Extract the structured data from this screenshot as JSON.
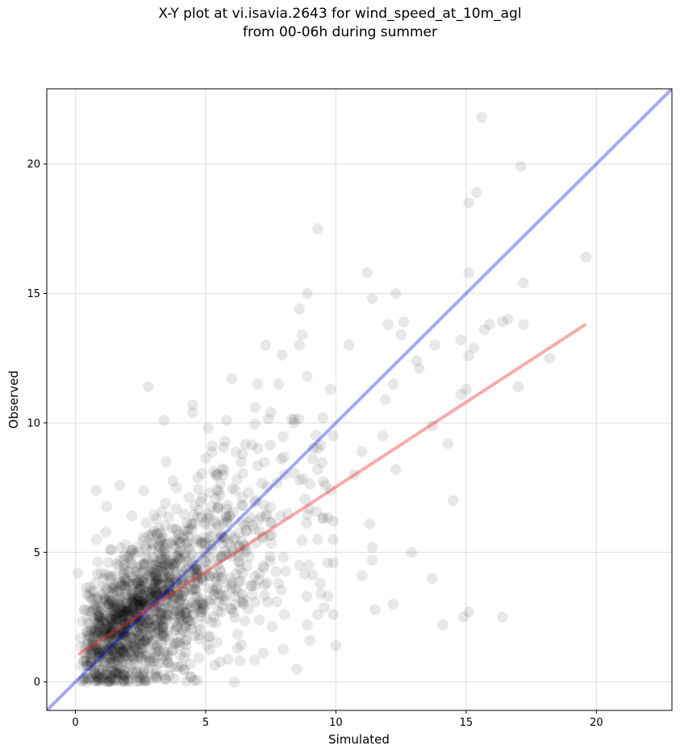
{
  "chart_data": {
    "type": "scatter",
    "title_line1": "X-Y plot at vi.isavia.2643 for wind_speed_at_10m_agl",
    "title_line2": "from 00-06h during summer",
    "xlabel": "Simulated",
    "ylabel": "Observed",
    "xlim": [
      -1.1,
      22.9
    ],
    "ylim": [
      -1.1,
      22.9
    ],
    "xticks": [
      0,
      5,
      10,
      15,
      20
    ],
    "yticks": [
      0,
      5,
      10,
      15,
      20
    ],
    "grid": true,
    "point_color": "#000000",
    "point_opacity": 0.09,
    "identity_line": {
      "color": "#0000ee",
      "x": [
        -1.1,
        22.9
      ],
      "y": [
        -1.1,
        22.9
      ]
    },
    "regression_line": {
      "color": "#ee2222",
      "x": [
        0.15,
        19.55
      ],
      "y": [
        1.08,
        13.78
      ]
    },
    "highlighted_points": [
      [
        15.6,
        21.8
      ],
      [
        17.1,
        19.9
      ],
      [
        15.4,
        18.9
      ],
      [
        15.1,
        18.5
      ],
      [
        9.3,
        17.5
      ],
      [
        19.6,
        16.4
      ],
      [
        11.2,
        15.8
      ],
      [
        15.1,
        15.8
      ],
      [
        17.2,
        15.4
      ],
      [
        8.9,
        15.0
      ],
      [
        12.3,
        15.0
      ],
      [
        11.4,
        14.8
      ],
      [
        8.6,
        14.4
      ],
      [
        16.6,
        14.0
      ],
      [
        16.4,
        13.9
      ],
      [
        12.6,
        13.9
      ],
      [
        15.9,
        13.8
      ],
      [
        17.2,
        13.8
      ],
      [
        12.0,
        13.8
      ],
      [
        15.7,
        13.6
      ],
      [
        12.5,
        13.4
      ],
      [
        8.7,
        13.4
      ],
      [
        14.8,
        13.2
      ],
      [
        7.3,
        13.0
      ],
      [
        10.5,
        13.0
      ],
      [
        8.6,
        13.0
      ],
      [
        13.8,
        13.0
      ],
      [
        15.3,
        12.9
      ],
      [
        15.1,
        12.6
      ],
      [
        13.1,
        12.4
      ],
      [
        18.2,
        12.5
      ],
      [
        13.2,
        12.1
      ],
      [
        8.9,
        11.8
      ],
      [
        6.0,
        11.7
      ],
      [
        7.0,
        11.5
      ],
      [
        7.8,
        11.5
      ],
      [
        12.2,
        11.5
      ],
      [
        17.0,
        11.4
      ],
      [
        2.8,
        11.4
      ],
      [
        15.0,
        11.3
      ],
      [
        9.8,
        11.3
      ],
      [
        14.8,
        11.1
      ],
      [
        11.9,
        10.9
      ],
      [
        4.5,
        10.7
      ],
      [
        6.9,
        10.6
      ],
      [
        4.5,
        10.4
      ],
      [
        7.5,
        10.4
      ],
      [
        9.5,
        10.2
      ],
      [
        8.4,
        10.0
      ],
      [
        3.4,
        10.1
      ],
      [
        5.8,
        10.1
      ],
      [
        13.7,
        9.9
      ],
      [
        5.1,
        9.8
      ],
      [
        9.9,
        9.5
      ],
      [
        11.8,
        9.5
      ],
      [
        14.3,
        9.2
      ],
      [
        11.0,
        8.9
      ],
      [
        9.1,
        8.6
      ],
      [
        9.3,
        8.2
      ],
      [
        10.7,
        8.0
      ],
      [
        12.3,
        8.2
      ],
      [
        9.6,
        7.6
      ],
      [
        9.8,
        7.4
      ],
      [
        1.7,
        7.6
      ],
      [
        0.8,
        7.4
      ],
      [
        14.5,
        7.0
      ],
      [
        9.5,
        6.3
      ],
      [
        9.9,
        6.2
      ],
      [
        11.3,
        6.1
      ],
      [
        9.3,
        5.5
      ],
      [
        9.9,
        5.5
      ],
      [
        11.4,
        5.2
      ],
      [
        12.9,
        5.0
      ],
      [
        11.4,
        4.7
      ],
      [
        9.9,
        4.6
      ],
      [
        8.6,
        4.5
      ],
      [
        11.0,
        4.1
      ],
      [
        13.7,
        4.0
      ],
      [
        9.4,
        3.8
      ],
      [
        9.7,
        3.3
      ],
      [
        9.9,
        2.6
      ],
      [
        9.3,
        2.6
      ],
      [
        12.2,
        3.0
      ],
      [
        11.5,
        2.8
      ],
      [
        15.1,
        2.7
      ],
      [
        14.9,
        2.5
      ],
      [
        16.4,
        2.5
      ],
      [
        14.1,
        2.2
      ],
      [
        8.9,
        2.2
      ],
      [
        9.0,
        1.6
      ],
      [
        10.0,
        1.4
      ],
      [
        8.5,
        0.5
      ],
      [
        6.1,
        0.0
      ],
      [
        0.2,
        1.7
      ],
      [
        0.1,
        4.2
      ],
      [
        0.8,
        5.5
      ]
    ],
    "point_cloud": {
      "count": 1500,
      "sim_range": [
        0.2,
        9.8
      ],
      "sim_shape": 1.7,
      "sim_scale": 1.9,
      "obs_slope": 0.66,
      "obs_intercept": 1.0,
      "obs_noise_sd": 1.9,
      "seed": 2643
    }
  }
}
